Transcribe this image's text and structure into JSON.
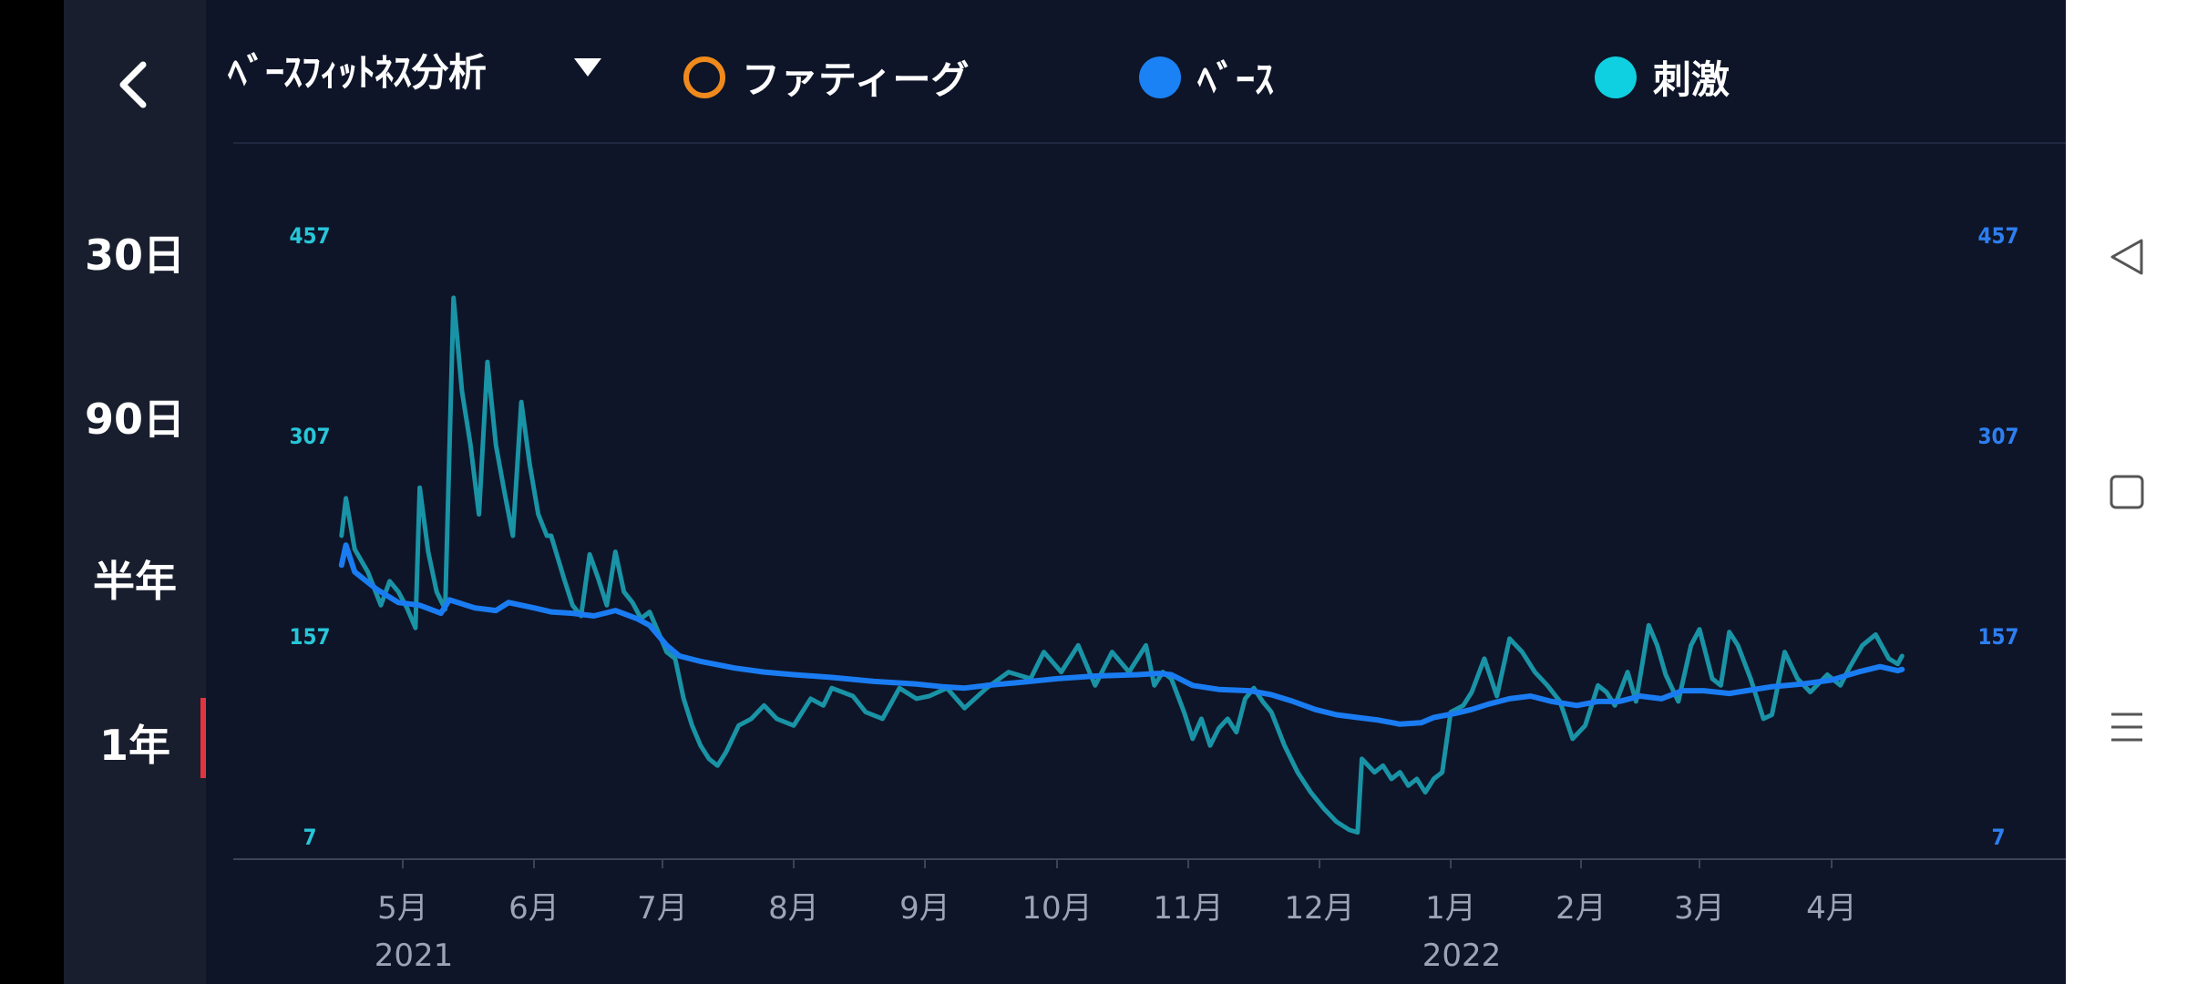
{
  "sidebar": {
    "ranges": [
      {
        "label": "30日",
        "active": false
      },
      {
        "label": "90日",
        "active": false
      },
      {
        "label": "半年",
        "active": false
      },
      {
        "label": "1年",
        "active": true
      }
    ]
  },
  "header": {
    "title": "ﾍﾞｰｽﾌｨｯﾄﾈｽ分析",
    "legend": [
      {
        "label": "ファティーグ",
        "color": "#f08a1c",
        "style": "ring"
      },
      {
        "label": "ﾍﾞｰｽ",
        "color": "#1a82f5",
        "style": "filled"
      },
      {
        "label": "刺激",
        "color": "#0fd0e0",
        "style": "filled"
      }
    ]
  },
  "colors": {
    "background": "#0e1528",
    "sidebar": "#181e2d",
    "base_line": "#1a7cf2",
    "stimulus_line": "#1a93a6",
    "left_axis": "#27c6d8",
    "right_axis": "#2d7ff0",
    "active_indicator": "#e0353e"
  },
  "chart_data": {
    "type": "line",
    "y_ticks": [
      7,
      157,
      307,
      457
    ],
    "ylim": [
      7,
      457
    ],
    "x_ticks": [
      "5月",
      "6月",
      "7月",
      "8月",
      "9月",
      "10月",
      "11月",
      "12月",
      "1月",
      "2月",
      "3月",
      "4月"
    ],
    "year_labels": [
      {
        "label": "2021",
        "month": "5月"
      },
      {
        "label": "2022",
        "month": "1月"
      }
    ],
    "x_range": [
      "2021-04-17",
      "2022-04-17"
    ],
    "grid": false,
    "series": [
      {
        "name": "ﾍﾞｰｽ",
        "color": "#1a7cf2",
        "points": [
          [
            "2021-04-17",
            210
          ],
          [
            "2021-04-18",
            225
          ],
          [
            "2021-04-20",
            205
          ],
          [
            "2021-04-25",
            192
          ],
          [
            "2021-04-30",
            182
          ],
          [
            "2021-05-05",
            180
          ],
          [
            "2021-05-10",
            174
          ],
          [
            "2021-05-12",
            184
          ],
          [
            "2021-05-18",
            178
          ],
          [
            "2021-05-23",
            176
          ],
          [
            "2021-05-26",
            182
          ],
          [
            "2021-06-01",
            178
          ],
          [
            "2021-06-05",
            175
          ],
          [
            "2021-06-10",
            174
          ],
          [
            "2021-06-15",
            172
          ],
          [
            "2021-06-20",
            176
          ],
          [
            "2021-06-25",
            170
          ],
          [
            "2021-06-28",
            165
          ],
          [
            "2021-07-02",
            150
          ],
          [
            "2021-07-05",
            142
          ],
          [
            "2021-07-10",
            138
          ],
          [
            "2021-07-18",
            133
          ],
          [
            "2021-07-25",
            130
          ],
          [
            "2021-08-01",
            128
          ],
          [
            "2021-08-10",
            126
          ],
          [
            "2021-08-20",
            123
          ],
          [
            "2021-08-30",
            121
          ],
          [
            "2021-09-05",
            119
          ],
          [
            "2021-09-10",
            118
          ],
          [
            "2021-09-15",
            120
          ],
          [
            "2021-09-22",
            122
          ],
          [
            "2021-10-01",
            125
          ],
          [
            "2021-10-10",
            127
          ],
          [
            "2021-10-20",
            128
          ],
          [
            "2021-10-25",
            129
          ],
          [
            "2021-10-28",
            128
          ],
          [
            "2021-11-02",
            120
          ],
          [
            "2021-11-08",
            117
          ],
          [
            "2021-11-15",
            116
          ],
          [
            "2021-11-20",
            113
          ],
          [
            "2021-11-25",
            108
          ],
          [
            "2021-11-30",
            102
          ],
          [
            "2021-12-05",
            98
          ],
          [
            "2021-12-10",
            96
          ],
          [
            "2021-12-15",
            94
          ],
          [
            "2021-12-20",
            91
          ],
          [
            "2021-12-25",
            92
          ],
          [
            "2021-12-28",
            96
          ],
          [
            "2022-01-02",
            99
          ],
          [
            "2022-01-06",
            102
          ],
          [
            "2022-01-10",
            106
          ],
          [
            "2022-01-15",
            110
          ],
          [
            "2022-01-20",
            112
          ],
          [
            "2022-01-25",
            108
          ],
          [
            "2022-01-31",
            105
          ],
          [
            "2022-02-05",
            108
          ],
          [
            "2022-02-10",
            108
          ],
          [
            "2022-02-15",
            112
          ],
          [
            "2022-02-20",
            110
          ],
          [
            "2022-02-25",
            116
          ],
          [
            "2022-03-02",
            116
          ],
          [
            "2022-03-08",
            114
          ],
          [
            "2022-03-12",
            116
          ],
          [
            "2022-03-18",
            119
          ],
          [
            "2022-03-25",
            121
          ],
          [
            "2022-04-01",
            124
          ],
          [
            "2022-04-07",
            130
          ],
          [
            "2022-04-12",
            134
          ],
          [
            "2022-04-16",
            131
          ],
          [
            "2022-04-17",
            132
          ]
        ]
      },
      {
        "name": "刺激",
        "color": "#1a93a6",
        "points": [
          [
            "2021-04-17",
            232
          ],
          [
            "2021-04-18",
            260
          ],
          [
            "2021-04-20",
            222
          ],
          [
            "2021-04-23",
            205
          ],
          [
            "2021-04-26",
            180
          ],
          [
            "2021-04-28",
            198
          ],
          [
            "2021-04-30",
            190
          ],
          [
            "2021-05-02",
            178
          ],
          [
            "2021-05-04",
            163
          ],
          [
            "2021-05-05",
            268
          ],
          [
            "2021-05-07",
            220
          ],
          [
            "2021-05-09",
            190
          ],
          [
            "2021-05-11",
            177
          ],
          [
            "2021-05-13",
            410
          ],
          [
            "2021-05-15",
            340
          ],
          [
            "2021-05-17",
            300
          ],
          [
            "2021-05-19",
            248
          ],
          [
            "2021-05-21",
            362
          ],
          [
            "2021-05-23",
            300
          ],
          [
            "2021-05-25",
            265
          ],
          [
            "2021-05-27",
            232
          ],
          [
            "2021-05-29",
            332
          ],
          [
            "2021-05-31",
            285
          ],
          [
            "2021-06-02",
            248
          ],
          [
            "2021-06-04",
            232
          ],
          [
            "2021-06-05",
            232
          ],
          [
            "2021-06-08",
            200
          ],
          [
            "2021-06-10",
            180
          ],
          [
            "2021-06-12",
            172
          ],
          [
            "2021-06-14",
            218
          ],
          [
            "2021-06-16",
            200
          ],
          [
            "2021-06-18",
            180
          ],
          [
            "2021-06-20",
            220
          ],
          [
            "2021-06-22",
            190
          ],
          [
            "2021-06-24",
            182
          ],
          [
            "2021-06-26",
            170
          ],
          [
            "2021-06-28",
            175
          ],
          [
            "2021-06-30",
            160
          ],
          [
            "2021-07-02",
            145
          ],
          [
            "2021-07-04",
            140
          ],
          [
            "2021-07-06",
            110
          ],
          [
            "2021-07-08",
            90
          ],
          [
            "2021-07-10",
            75
          ],
          [
            "2021-07-12",
            65
          ],
          [
            "2021-07-14",
            60
          ],
          [
            "2021-07-16",
            70
          ],
          [
            "2021-07-19",
            90
          ],
          [
            "2021-07-22",
            95
          ],
          [
            "2021-07-25",
            105
          ],
          [
            "2021-07-28",
            95
          ],
          [
            "2021-08-01",
            90
          ],
          [
            "2021-08-05",
            110
          ],
          [
            "2021-08-08",
            105
          ],
          [
            "2021-08-10",
            118
          ],
          [
            "2021-08-15",
            112
          ],
          [
            "2021-08-18",
            100
          ],
          [
            "2021-08-22",
            95
          ],
          [
            "2021-08-26",
            118
          ],
          [
            "2021-08-30",
            110
          ],
          [
            "2021-09-02",
            112
          ],
          [
            "2021-09-06",
            118
          ],
          [
            "2021-09-10",
            103
          ],
          [
            "2021-09-15",
            118
          ],
          [
            "2021-09-20",
            130
          ],
          [
            "2021-09-25",
            125
          ],
          [
            "2021-09-28",
            145
          ],
          [
            "2021-10-02",
            130
          ],
          [
            "2021-10-06",
            150
          ],
          [
            "2021-10-10",
            120
          ],
          [
            "2021-10-14",
            145
          ],
          [
            "2021-10-18",
            130
          ],
          [
            "2021-10-22",
            150
          ],
          [
            "2021-10-24",
            120
          ],
          [
            "2021-10-26",
            130
          ],
          [
            "2021-10-28",
            125
          ],
          [
            "2021-10-31",
            100
          ],
          [
            "2021-11-02",
            80
          ],
          [
            "2021-11-04",
            95
          ],
          [
            "2021-11-06",
            75
          ],
          [
            "2021-11-08",
            88
          ],
          [
            "2021-11-10",
            95
          ],
          [
            "2021-11-12",
            85
          ],
          [
            "2021-11-14",
            110
          ],
          [
            "2021-11-16",
            118
          ],
          [
            "2021-11-18",
            108
          ],
          [
            "2021-11-20",
            100
          ],
          [
            "2021-11-23",
            75
          ],
          [
            "2021-11-26",
            55
          ],
          [
            "2021-11-29",
            40
          ],
          [
            "2021-12-02",
            28
          ],
          [
            "2021-12-05",
            18
          ],
          [
            "2021-12-08",
            12
          ],
          [
            "2021-12-10",
            10
          ],
          [
            "2021-12-11",
            65
          ],
          [
            "2021-12-14",
            55
          ],
          [
            "2021-12-16",
            60
          ],
          [
            "2021-12-18",
            50
          ],
          [
            "2021-12-20",
            55
          ],
          [
            "2021-12-22",
            45
          ],
          [
            "2021-12-24",
            50
          ],
          [
            "2021-12-26",
            40
          ],
          [
            "2021-12-28",
            50
          ],
          [
            "2021-12-30",
            55
          ],
          [
            "2022-01-01",
            100
          ],
          [
            "2022-01-04",
            105
          ],
          [
            "2022-01-06",
            115
          ],
          [
            "2022-01-09",
            140
          ],
          [
            "2022-01-12",
            112
          ],
          [
            "2022-01-15",
            155
          ],
          [
            "2022-01-18",
            145
          ],
          [
            "2022-01-21",
            130
          ],
          [
            "2022-01-24",
            120
          ],
          [
            "2022-01-27",
            108
          ],
          [
            "2022-01-30",
            80
          ],
          [
            "2022-02-02",
            90
          ],
          [
            "2022-02-05",
            120
          ],
          [
            "2022-02-07",
            115
          ],
          [
            "2022-02-09",
            105
          ],
          [
            "2022-02-12",
            130
          ],
          [
            "2022-02-14",
            108
          ],
          [
            "2022-02-17",
            165
          ],
          [
            "2022-02-19",
            150
          ],
          [
            "2022-02-21",
            128
          ],
          [
            "2022-02-24",
            108
          ],
          [
            "2022-02-27",
            150
          ],
          [
            "2022-03-01",
            162
          ],
          [
            "2022-03-04",
            125
          ],
          [
            "2022-03-06",
            120
          ],
          [
            "2022-03-08",
            160
          ],
          [
            "2022-03-10",
            150
          ],
          [
            "2022-03-13",
            125
          ],
          [
            "2022-03-16",
            95
          ],
          [
            "2022-03-18",
            98
          ],
          [
            "2022-03-21",
            145
          ],
          [
            "2022-03-24",
            125
          ],
          [
            "2022-03-27",
            115
          ],
          [
            "2022-03-31",
            128
          ],
          [
            "2022-04-03",
            120
          ],
          [
            "2022-04-05",
            133
          ],
          [
            "2022-04-08",
            150
          ],
          [
            "2022-04-11",
            158
          ],
          [
            "2022-04-14",
            140
          ],
          [
            "2022-04-16",
            136
          ],
          [
            "2022-04-17",
            142
          ]
        ]
      }
    ]
  }
}
